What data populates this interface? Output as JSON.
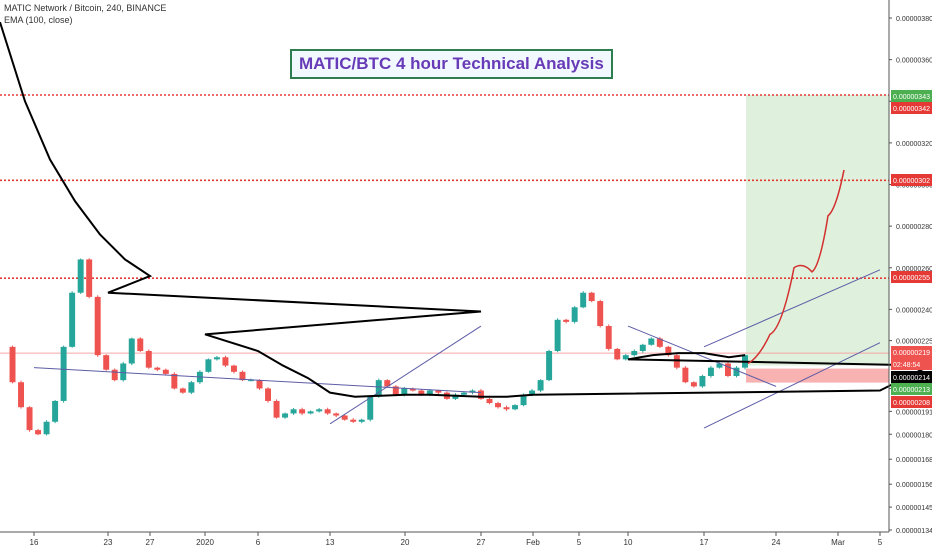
{
  "header": {
    "symbol_line": "MATIC Network / Bitcoin, 240, BINANCE",
    "indicator_line": "EMA (100, close)"
  },
  "chart_data": {
    "type": "line",
    "title": "MATIC/BTC 4 hour Technical Analysis",
    "symbol": "MATIC Network / Bitcoin, 240, BINANCE",
    "interval": "240",
    "exchange": "BINANCE",
    "indicator": "EMA (100, close)",
    "ylim": [
      1.33e-06,
      3.94e-06
    ],
    "y_ticks": [
      1.34e-06,
      1.45e-06,
      1.56e-06,
      1.68e-06,
      1.8e-06,
      1.91e-06,
      2.02e-06,
      2.13e-06,
      2.25e-06,
      2.4e-06,
      2.6e-06,
      2.8e-06,
      3e-06,
      3.2e-06,
      3.4e-06,
      3.6e-06,
      3.8e-06
    ],
    "y_tick_labels": [
      "0.00000134",
      "0.00000145",
      "0.00000156",
      "0.00000168",
      "0.00000180",
      "0.00000191",
      "0.00000202",
      "0.00000213",
      "0.00000225",
      "0.00000240",
      "0.00000260",
      "0.00000280",
      "0.00000300",
      "0.00000320",
      "0.00000340",
      "0.00000360",
      "0.00000380"
    ],
    "x_tick_labels": [
      "16",
      "23",
      "27",
      "2020",
      "6",
      "13",
      "20",
      "27",
      "Feb",
      "5",
      "10",
      "17",
      "24",
      "Mar",
      "5"
    ],
    "close_series": [
      [
        "16",
        2.22e-06
      ],
      [
        "",
        2.05e-06
      ],
      [
        "",
        1.93e-06
      ],
      [
        "",
        1.82e-06
      ],
      [
        "",
        1.8e-06
      ],
      [
        "",
        1.86e-06
      ],
      [
        "",
        1.96e-06
      ],
      [
        "",
        2.22e-06
      ],
      [
        "",
        2.48e-06
      ],
      [
        "",
        2.64e-06
      ],
      [
        "",
        2.46e-06
      ],
      [
        "",
        2.18e-06
      ],
      [
        "23",
        2.11e-06
      ],
      [
        "",
        2.06e-06
      ],
      [
        "",
        2.14e-06
      ],
      [
        "27",
        2.26e-06
      ],
      [
        "",
        2.2e-06
      ],
      [
        "",
        2.12e-06
      ],
      [
        "",
        2.11e-06
      ],
      [
        "",
        2.09e-06
      ],
      [
        "",
        2.02e-06
      ],
      [
        "",
        2e-06
      ],
      [
        "",
        2.05e-06
      ],
      [
        "",
        2.1e-06
      ],
      [
        "2020",
        2.16e-06
      ],
      [
        "",
        2.17e-06
      ],
      [
        "",
        2.13e-06
      ],
      [
        "",
        2.1e-06
      ],
      [
        "",
        2.06e-06
      ],
      [
        "6",
        2.06e-06
      ],
      [
        "",
        2.02e-06
      ],
      [
        "",
        1.96e-06
      ],
      [
        "",
        1.88e-06
      ],
      [
        "",
        1.9e-06
      ],
      [
        "",
        1.92e-06
      ],
      [
        "",
        1.9e-06
      ],
      [
        "",
        1.91e-06
      ],
      [
        "",
        1.92e-06
      ],
      [
        "",
        1.9e-06
      ],
      [
        "13",
        1.89e-06
      ],
      [
        "",
        1.87e-06
      ],
      [
        "",
        1.86e-06
      ],
      [
        "",
        1.87e-06
      ],
      [
        "",
        1.98e-06
      ],
      [
        "",
        2.06e-06
      ],
      [
        "",
        2.03e-06
      ],
      [
        "",
        1.99e-06
      ],
      [
        "20",
        2.02e-06
      ],
      [
        "",
        2.01e-06
      ],
      [
        "",
        1.99e-06
      ],
      [
        "",
        2.01e-06
      ],
      [
        "",
        2e-06
      ],
      [
        "",
        1.97e-06
      ],
      [
        "",
        1.99e-06
      ],
      [
        "",
        2e-06
      ],
      [
        "",
        2.01e-06
      ],
      [
        "",
        1.97e-06
      ],
      [
        "27",
        1.95e-06
      ],
      [
        "",
        1.93e-06
      ],
      [
        "",
        1.92e-06
      ],
      [
        "",
        1.94e-06
      ],
      [
        "",
        1.99e-06
      ],
      [
        "Feb",
        2.01e-06
      ],
      [
        "",
        2.06e-06
      ],
      [
        "",
        2.2e-06
      ],
      [
        "",
        2.35e-06
      ],
      [
        "5",
        2.34e-06
      ],
      [
        "",
        2.41e-06
      ],
      [
        "",
        2.48e-06
      ],
      [
        "",
        2.44e-06
      ],
      [
        "",
        2.32e-06
      ],
      [
        "",
        2.21e-06
      ],
      [
        "10",
        2.16e-06
      ],
      [
        "",
        2.18e-06
      ],
      [
        "",
        2.2e-06
      ],
      [
        "",
        2.23e-06
      ],
      [
        "",
        2.26e-06
      ],
      [
        "",
        2.22e-06
      ],
      [
        "",
        2.18e-06
      ],
      [
        "",
        2.12e-06
      ],
      [
        "",
        2.05e-06
      ],
      [
        "17",
        2.03e-06
      ],
      [
        "",
        2.08e-06
      ],
      [
        "",
        2.12e-06
      ],
      [
        "",
        2.14e-06
      ],
      [
        "",
        2.08e-06
      ],
      [
        "",
        2.12e-06
      ],
      [
        "",
        2.18e-06
      ]
    ],
    "ema_series": [
      [
        "",
        3.78e-06
      ],
      [
        "",
        3.4e-06
      ],
      [
        "",
        3.12e-06
      ],
      [
        "",
        2.92e-06
      ],
      [
        "",
        2.76e-06
      ],
      [
        "",
        2.64e-06
      ],
      [
        "",
        2.56e-06
      ],
      [
        "23",
        2.48e-06
      ],
      [
        "27",
        2.39e-06
      ],
      [
        "2020",
        2.28e-06
      ],
      [
        "6",
        2.2e-06
      ],
      [
        "",
        2.13e-06
      ],
      [
        "",
        2.07e-06
      ],
      [
        "13",
        2e-06
      ],
      [
        "",
        1.98e-06
      ],
      [
        "20",
        1.99e-06
      ],
      [
        "",
        1.99e-06
      ],
      [
        "27",
        1.98e-06
      ],
      [
        "",
        1.98e-06
      ],
      [
        "Feb",
        1.99e-06
      ],
      [
        "5",
        2.01e-06
      ],
      [
        "",
        2.07e-06
      ],
      [
        "",
        2.13e-06
      ],
      [
        "10",
        2.16e-06
      ],
      [
        "",
        2.18e-06
      ],
      [
        "",
        2.19e-06
      ],
      [
        "17",
        2.19e-06
      ],
      [
        "",
        2.17e-06
      ],
      [
        "",
        2.18e-06
      ]
    ],
    "horizontal_levels": [
      {
        "value": 3.43e-06,
        "label": "0.00000343",
        "color": "#e53935",
        "style": "dotted"
      },
      {
        "value": 3.02e-06,
        "label": "0.00000302",
        "color": "#e53935",
        "style": "dotted"
      },
      {
        "value": 2.55e-06,
        "label": "0.00000255",
        "color": "#e53935",
        "style": "dotted"
      },
      {
        "value": 2.19e-06,
        "label": "0.00000219",
        "color": "#f4a6a6",
        "style": "solid"
      }
    ],
    "trendlines": [
      {
        "from": [
          "27",
          2.32e-06
        ],
        "to": [
          "13",
          1.85e-06
        ]
      },
      {
        "from": [
          "16",
          2.12e-06
        ],
        "to": [
          "27",
          2e-06
        ]
      },
      {
        "from": [
          "5",
          2.59e-06
        ],
        "to": [
          "17",
          2.22e-06
        ]
      },
      {
        "from": [
          "5",
          2.24e-06
        ],
        "to": [
          "17",
          1.83e-06
        ]
      },
      {
        "from": [
          "10",
          2.32e-06
        ],
        "to": [
          "24",
          2.03e-06
        ]
      }
    ],
    "position_tool": {
      "entry": 2.13e-06,
      "target": 3.43e-06,
      "stop": 2.08e-06,
      "profit_color": "#dff1dc",
      "loss_color": "#f8b2b2"
    },
    "projection_path": [
      [
        "17",
        2.14e-06
      ],
      [
        "24",
        2.28e-06
      ],
      [
        "24",
        2.6e-06
      ],
      [
        "",
        2.58e-06
      ],
      [
        "Mar",
        2.85e-06
      ],
      [
        "Mar",
        3.07e-06
      ]
    ],
    "price_labels": [
      {
        "text": "0.00000343",
        "color": "#4caf50"
      },
      {
        "text": "0.00000342",
        "color": "#e53935"
      },
      {
        "text": "0.00000302",
        "color": "#e53935"
      },
      {
        "text": "0.00000255",
        "color": "#e53935"
      },
      {
        "text": "0.00000219",
        "color": "#ef5350"
      },
      {
        "text": "02:48:54",
        "color": "#ef5350"
      },
      {
        "text": "0.00000214",
        "color": "#000000"
      },
      {
        "text": "0.00000213",
        "color": "#4caf50"
      },
      {
        "text": "0.00000208",
        "color": "#e53935"
      }
    ],
    "colors": {
      "up": "#26a69a",
      "down": "#ef5350",
      "ema": "#000000",
      "trendline": "#5c5ca6",
      "projection": "#d32f2f"
    },
    "grid": false
  }
}
